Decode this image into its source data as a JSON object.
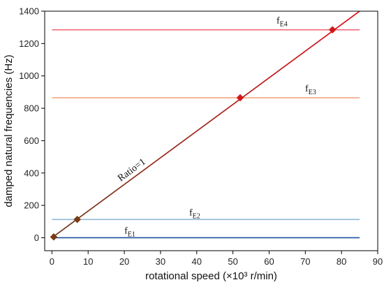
{
  "chart_data": {
    "type": "line",
    "xlabel": "rotational speed (×10³ r/min)",
    "ylabel": "damped natural frequencies (Hz)",
    "xlim": [
      -2,
      90
    ],
    "ylim": [
      -80,
      1400
    ],
    "xticks": [
      0,
      10,
      20,
      30,
      40,
      50,
      60,
      70,
      80,
      90
    ],
    "yticks": [
      0,
      200,
      400,
      600,
      800,
      1000,
      1200,
      1400
    ],
    "ratio_line": {
      "label": "Ratio=1",
      "x": [
        0,
        85
      ],
      "y": [
        0,
        1400
      ],
      "color_start": "#6b3b1e",
      "color_end": "#e0101a"
    },
    "horizontal_lines": [
      {
        "label_main": "f",
        "label_sub": "E1",
        "y": 0,
        "color": "#1f4fa0"
      },
      {
        "label_main": "f",
        "label_sub": "E2",
        "y": 113,
        "color": "#8fb8d8"
      },
      {
        "label_main": "f",
        "label_sub": "E3",
        "y": 865,
        "color": "#f4a07a"
      },
      {
        "label_main": "f",
        "label_sub": "E4",
        "y": 1285,
        "color": "#f36b7a"
      }
    ],
    "markers": [
      {
        "x": 0.5,
        "y": 5,
        "color": "#7a3a14"
      },
      {
        "x": 7,
        "y": 113,
        "color": "#7a3a14"
      },
      {
        "x": 52,
        "y": 865,
        "color": "#d01818"
      },
      {
        "x": 77.5,
        "y": 1285,
        "color": "#d01818"
      }
    ]
  }
}
